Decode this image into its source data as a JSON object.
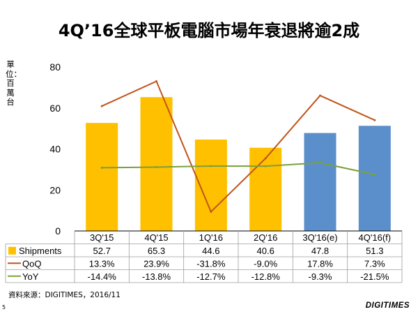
{
  "title": "4Q’16全球平板電腦市場年衰退將逾2成",
  "source": "資料來源：DIGITIMES，2016/11",
  "page_number": "5",
  "logo": "DIGITIMES",
  "colors": {
    "bar": "#FFC000",
    "bar_forecast": "#5B8FCB",
    "qoq": "#C0541A",
    "yoy": "#7BA03B",
    "table_border": "#9E9E9E"
  },
  "chart_data": {
    "type": "bar",
    "title": "4Q’16全球平板電腦市場年衰退將逾2成",
    "ylabel": "單位：百萬台",
    "xlabel": "",
    "ylim": [
      0,
      80
    ],
    "yticks": [
      "0",
      "20",
      "40",
      "60",
      "80"
    ],
    "grid": false,
    "legend_placement": "data-table",
    "categories": [
      "3Q'15",
      "4Q'15",
      "1Q'16",
      "2Q'16",
      "3Q'16(e)",
      "4Q'16(f)"
    ],
    "forecast_categories": [
      "3Q'16(e)",
      "4Q'16(f)"
    ],
    "series": [
      {
        "name": "Shipments",
        "kind": "bar",
        "values": [
          52.7,
          65.3,
          44.6,
          40.6,
          47.8,
          51.3
        ],
        "labels": [
          "52.7",
          "65.3",
          "44.6",
          "40.6",
          "47.8",
          "51.3"
        ]
      },
      {
        "name": "QoQ",
        "kind": "line",
        "values": [
          13.3,
          23.9,
          -31.8,
          -9.0,
          17.8,
          7.3
        ],
        "labels": [
          "13.3%",
          "23.9%",
          "-31.8%",
          "-9.0%",
          "17.8%",
          "7.3%"
        ],
        "secondary_axis_range": [
          -40,
          30
        ]
      },
      {
        "name": "YoY",
        "kind": "line",
        "values": [
          -14.4,
          -13.8,
          -12.7,
          -12.8,
          -9.3,
          -21.5
        ],
        "labels": [
          "-14.4%",
          "-13.8%",
          "-12.7%",
          "-12.8%",
          "-9.3%",
          "-21.5%"
        ],
        "secondary_axis_range": [
          -80,
          90
        ]
      }
    ]
  }
}
